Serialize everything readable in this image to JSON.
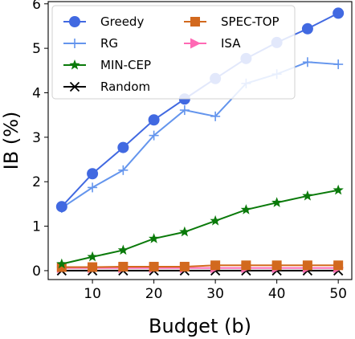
{
  "chart_data": {
    "type": "line",
    "xlabel": "Budget (b)",
    "ylabel": "IB (%)",
    "xlim": [
      2.8,
      52.2
    ],
    "ylim": [
      -0.2,
      6.05
    ],
    "xticks": [
      10,
      20,
      30,
      40,
      50
    ],
    "yticks": [
      0,
      1,
      2,
      3,
      4,
      5,
      6
    ],
    "x": [
      5,
      10,
      15,
      20,
      25,
      30,
      35,
      40,
      45,
      50
    ],
    "legend_position": "top-left",
    "grid": false,
    "series": [
      {
        "name": "Greedy",
        "color": "#4169e1",
        "marker": "circle",
        "values": [
          1.44,
          2.18,
          2.77,
          3.39,
          3.86,
          4.32,
          4.77,
          5.13,
          5.44,
          5.79
        ]
      },
      {
        "name": "RG",
        "color": "#6495ed",
        "marker": "plus",
        "values": [
          1.41,
          1.87,
          2.26,
          3.04,
          3.61,
          3.47,
          4.21,
          4.42,
          4.69,
          4.64
        ]
      },
      {
        "name": "MIN-CEP",
        "color": "#0a7a0a",
        "marker": "star",
        "values": [
          0.15,
          0.31,
          0.46,
          0.72,
          0.87,
          1.12,
          1.37,
          1.53,
          1.68,
          1.81
        ]
      },
      {
        "name": "Random",
        "color": "#000000",
        "marker": "x",
        "values": [
          0.0,
          0.0,
          0.0,
          0.0,
          0.0,
          0.0,
          0.0,
          0.0,
          0.0,
          0.0
        ]
      },
      {
        "name": "SPEC-TOP",
        "color": "#d2691e",
        "marker": "square",
        "values": [
          0.08,
          0.08,
          0.09,
          0.09,
          0.09,
          0.12,
          0.12,
          0.12,
          0.12,
          0.12
        ]
      },
      {
        "name": "ISA",
        "color": "#ff69b4",
        "marker": "triangle-right",
        "values": [
          0.06,
          0.06,
          0.06,
          0.06,
          0.06,
          0.06,
          0.06,
          0.06,
          0.06,
          0.06
        ]
      }
    ]
  }
}
